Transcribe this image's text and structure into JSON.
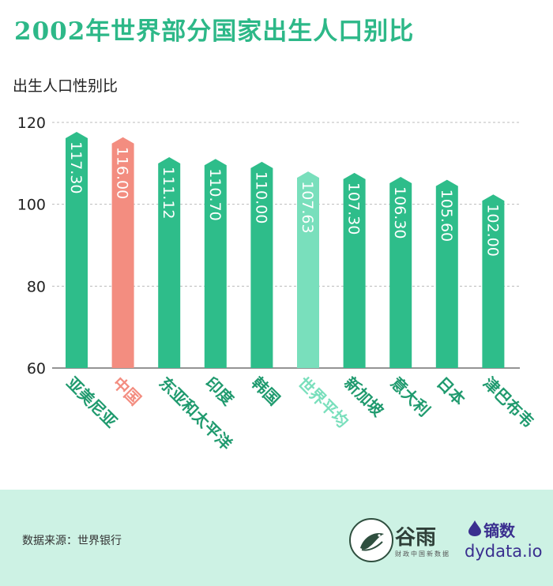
{
  "title": "2002年世界部分国家出生人口别比",
  "y_axis_label": "出生人口性别比",
  "source": "数据来源：世界银行",
  "logos": {
    "guyu_name": "谷雨",
    "guyu_sub": "财政中国新数据",
    "dydata_name": "镝数",
    "dydata_url": "dydata.io"
  },
  "colors": {
    "title": "#2db888",
    "bar": "#2ebd8a",
    "highlight": "#f38d80",
    "average": "#79dfbc",
    "label": "#1f9a6e",
    "footer_bg": "#cdf2e4",
    "brand_purple": "#3a2f8f"
  },
  "chart_data": {
    "type": "bar",
    "title": "2002年世界部分国家出生人口别比",
    "ylabel": "出生人口性别比",
    "xlabel": "",
    "ylim": [
      60,
      120
    ],
    "yticks": [
      60,
      80,
      100,
      120
    ],
    "grid": true,
    "categories": [
      "亚美尼亚",
      "中国",
      "东亚和太平洋",
      "印度",
      "韩国",
      "世界平均",
      "新加坡",
      "意大利",
      "日本",
      "津巴布韦"
    ],
    "values": [
      117.3,
      116.0,
      111.12,
      110.7,
      110.0,
      107.63,
      107.3,
      106.3,
      105.6,
      102.0
    ],
    "value_labels": [
      "117.30",
      "116.00",
      "111.12",
      "110.70",
      "110.00",
      "107.63",
      "107.30",
      "106.30",
      "105.60",
      "102.00"
    ],
    "highlight": {
      "中国": "highlight",
      "世界平均": "average"
    }
  }
}
